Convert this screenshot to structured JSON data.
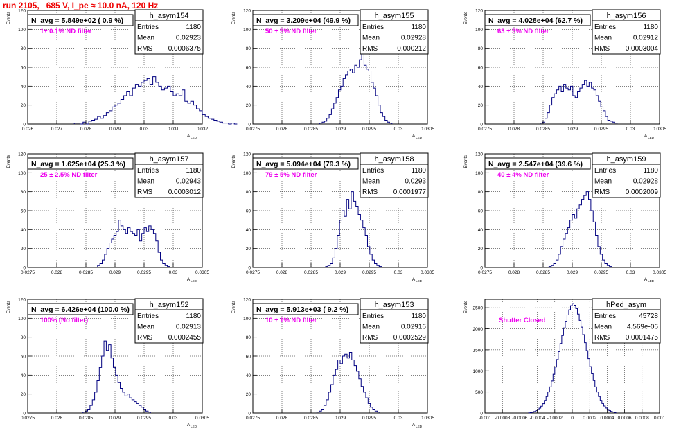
{
  "title": "run 2105,   685 V, I_pe ≈ 10.0 nA, 120 Hz",
  "colors": {
    "title": "#ee0000",
    "hist": "#000080",
    "annotation": "#ee00ee",
    "grid": "#000000"
  },
  "stats_labels": {
    "entries": "Entries",
    "mean": "Mean",
    "rms": "RMS"
  },
  "chart_data": [
    {
      "type": "histogram",
      "name": "h_asym154",
      "navg": "N_avg = 5.849e+02 ( 0.9 %)",
      "annotation": "1± 0.1% ND filter",
      "stats": {
        "entries": "1180",
        "mean": "0.02923",
        "rms": "0.0006375"
      },
      "ylabel": "Events",
      "xlabel": "A_LED",
      "grid": true,
      "xlim": [
        0.026,
        0.032
      ],
      "ylim": [
        0,
        120
      ],
      "xticks": [
        "0.026",
        "0.027",
        "0.028",
        "0.029",
        "0.03",
        "0.031",
        "0.032"
      ],
      "xtick_values": [
        0.026,
        0.027,
        0.028,
        0.029,
        0.03,
        0.031,
        0.032
      ],
      "yticks": [
        "0",
        "20",
        "40",
        "60",
        "80",
        "100",
        "120"
      ],
      "ytick_values": [
        0,
        20,
        40,
        60,
        80,
        100,
        120
      ],
      "bin_start": 0.0276,
      "bin_width": 0.0001,
      "values": [
        1,
        1,
        0,
        2,
        0,
        3,
        4,
        5,
        8,
        6,
        9,
        12,
        14,
        18,
        20,
        22,
        26,
        30,
        34,
        30,
        38,
        42,
        40,
        44,
        46,
        48,
        42,
        50,
        44,
        40,
        36,
        38,
        40,
        34,
        30,
        32,
        30,
        36,
        24,
        22,
        24,
        20,
        16,
        14,
        10,
        8,
        6,
        5,
        4,
        3,
        2,
        1,
        1,
        0,
        1,
        0
      ]
    },
    {
      "type": "histogram",
      "name": "h_asym155",
      "navg": "N_avg = 3.209e+04 (49.9 %)",
      "annotation": "50 ± 5% ND filter",
      "stats": {
        "entries": "1180",
        "mean": "0.02928",
        "rms": "0.000212"
      },
      "ylabel": "Events",
      "xlabel": "A_LED",
      "grid": true,
      "xlim": [
        0.0275,
        0.0305
      ],
      "ylim": [
        0,
        120
      ],
      "xticks": [
        "0.0275",
        "0.028",
        "0.0285",
        "0.029",
        "0.0295",
        "0.03",
        "0.0305"
      ],
      "xtick_values": [
        0.0275,
        0.028,
        0.0285,
        0.029,
        0.0295,
        0.03,
        0.0305
      ],
      "yticks": [
        "0",
        "20",
        "40",
        "60",
        "80",
        "100",
        "120"
      ],
      "ytick_values": [
        0,
        20,
        40,
        60,
        80,
        100,
        120
      ],
      "bin_start": 0.02865,
      "bin_width": 4e-05,
      "values": [
        1,
        2,
        3,
        6,
        10,
        16,
        22,
        28,
        36,
        40,
        48,
        52,
        56,
        58,
        54,
        62,
        60,
        68,
        75,
        62,
        58,
        56,
        44,
        38,
        30,
        20,
        12,
        8,
        4,
        2,
        1
      ]
    },
    {
      "type": "histogram",
      "name": "h_asym156",
      "navg": "N_avg = 4.028e+04 (62.7 %)",
      "annotation": "63 ± 5% ND filter",
      "stats": {
        "entries": "1180",
        "mean": "0.02912",
        "rms": "0.0003004"
      },
      "ylabel": "Events",
      "xlabel": "A_LED",
      "grid": true,
      "xlim": [
        0.0275,
        0.0305
      ],
      "ylim": [
        0,
        120
      ],
      "xticks": [
        "0.0275",
        "0.028",
        "0.0285",
        "0.029",
        "0.0295",
        "0.03",
        "0.0305"
      ],
      "xtick_values": [
        0.0275,
        0.028,
        0.0285,
        0.029,
        0.0295,
        0.03,
        0.0305
      ],
      "yticks": [
        "0",
        "20",
        "40",
        "60",
        "80",
        "100",
        "120"
      ],
      "ytick_values": [
        0,
        20,
        40,
        60,
        80,
        100,
        120
      ],
      "bin_start": 0.02845,
      "bin_width": 4e-05,
      "values": [
        1,
        2,
        6,
        12,
        20,
        28,
        32,
        36,
        40,
        34,
        42,
        38,
        36,
        40,
        30,
        28,
        34,
        38,
        42,
        46,
        40,
        44,
        38,
        36,
        30,
        24,
        18,
        14,
        8,
        4,
        3,
        2,
        1
      ]
    },
    {
      "type": "histogram",
      "name": "h_asym157",
      "navg": "N_avg = 1.625e+04 (25.3 %)",
      "annotation": "25 ± 2.5% ND filter",
      "stats": {
        "entries": "1180",
        "mean": "0.02943",
        "rms": "0.0003012"
      },
      "ylabel": "Events",
      "xlabel": "A_LED",
      "grid": true,
      "xlim": [
        0.0275,
        0.0305
      ],
      "ylim": [
        0,
        120
      ],
      "xticks": [
        "0.0275",
        "0.028",
        "0.0285",
        "0.029",
        "0.0295",
        "0.03",
        "0.0305"
      ],
      "xtick_values": [
        0.0275,
        0.028,
        0.0285,
        0.029,
        0.0295,
        0.03,
        0.0305
      ],
      "yticks": [
        "0",
        "20",
        "40",
        "60",
        "80",
        "100",
        "120"
      ],
      "ytick_values": [
        0,
        20,
        40,
        60,
        80,
        100,
        120
      ],
      "bin_start": 0.0287,
      "bin_width": 4e-05,
      "values": [
        2,
        4,
        8,
        14,
        20,
        26,
        30,
        34,
        38,
        50,
        44,
        40,
        36,
        42,
        38,
        36,
        34,
        40,
        28,
        36,
        42,
        38,
        44,
        40,
        36,
        28,
        16,
        8,
        4,
        2,
        1
      ]
    },
    {
      "type": "histogram",
      "name": "h_asym158",
      "navg": "N_avg = 5.094e+04 (79.3 %)",
      "annotation": "79 ± 5% ND filter",
      "stats": {
        "entries": "1180",
        "mean": "0.0293",
        "rms": "0.0001977"
      },
      "ylabel": "Events",
      "xlabel": "A_LED",
      "grid": true,
      "xlim": [
        0.0275,
        0.0305
      ],
      "ylim": [
        0,
        120
      ],
      "xticks": [
        "0.0275",
        "0.028",
        "0.0285",
        "0.029",
        "0.0295",
        "0.03",
        "0.0305"
      ],
      "xtick_values": [
        0.0275,
        0.028,
        0.0285,
        0.029,
        0.0295,
        0.03,
        0.0305
      ],
      "yticks": [
        "0",
        "20",
        "40",
        "60",
        "80",
        "100",
        "120"
      ],
      "ytick_values": [
        0,
        20,
        40,
        60,
        80,
        100,
        120
      ],
      "bin_start": 0.02875,
      "bin_width": 4e-05,
      "values": [
        1,
        2,
        4,
        10,
        20,
        34,
        50,
        60,
        54,
        72,
        62,
        80,
        70,
        64,
        56,
        50,
        42,
        34,
        22,
        14,
        8,
        4,
        2,
        1
      ]
    },
    {
      "type": "histogram",
      "name": "h_asym159",
      "navg": "N_avg = 2.547e+04 (39.6 %)",
      "annotation": "40 ± 4% ND filter",
      "stats": {
        "entries": "1180",
        "mean": "0.02928",
        "rms": "0.0002009"
      },
      "ylabel": "Events",
      "xlabel": "A_LED",
      "grid": true,
      "xlim": [
        0.0275,
        0.0305
      ],
      "ylim": [
        0,
        120
      ],
      "xticks": [
        "0.0275",
        "0.028",
        "0.0285",
        "0.029",
        "0.0295",
        "0.03",
        "0.0305"
      ],
      "xtick_values": [
        0.0275,
        0.028,
        0.0285,
        0.029,
        0.0295,
        0.03,
        0.0305
      ],
      "yticks": [
        "0",
        "20",
        "40",
        "60",
        "80",
        "100",
        "120"
      ],
      "ytick_values": [
        0,
        20,
        40,
        60,
        80,
        100,
        120
      ],
      "bin_start": 0.0286,
      "bin_width": 4e-05,
      "values": [
        1,
        2,
        4,
        8,
        14,
        22,
        30,
        36,
        42,
        50,
        56,
        52,
        62,
        66,
        72,
        76,
        80,
        72,
        60,
        48,
        34,
        22,
        14,
        8,
        4,
        2,
        1
      ]
    },
    {
      "type": "histogram",
      "name": "h_asym152",
      "navg": "N_avg = 6.426e+04 (100.0 %)",
      "annotation": "100% (No filter)",
      "stats": {
        "entries": "1180",
        "mean": "0.02913",
        "rms": "0.0002455"
      },
      "ylabel": "Events",
      "xlabel": "A_LED",
      "grid": true,
      "xlim": [
        0.0275,
        0.0305
      ],
      "ylim": [
        0,
        120
      ],
      "xticks": [
        "0.0275",
        "0.028",
        "0.0285",
        "0.029",
        "0.0295",
        "0.03",
        "0.0305"
      ],
      "xtick_values": [
        0.0275,
        0.028,
        0.0285,
        0.029,
        0.0295,
        0.03,
        0.0305
      ],
      "yticks": [
        "0",
        "20",
        "40",
        "60",
        "80",
        "100",
        "120"
      ],
      "ytick_values": [
        0,
        20,
        40,
        60,
        80,
        100,
        120
      ],
      "bin_start": 0.02845,
      "bin_width": 4e-05,
      "values": [
        1,
        2,
        4,
        8,
        14,
        22,
        34,
        48,
        60,
        76,
        66,
        72,
        58,
        48,
        40,
        32,
        26,
        22,
        18,
        20,
        16,
        14,
        12,
        10,
        8,
        6,
        4,
        2,
        1
      ]
    },
    {
      "type": "histogram",
      "name": "h_asym153",
      "navg": "N_avg = 5.913e+03 ( 9.2 %)",
      "annotation": "10 ± 1% ND filter",
      "stats": {
        "entries": "1180",
        "mean": "0.02916",
        "rms": "0.0002529"
      },
      "ylabel": "Events",
      "xlabel": "A_LED",
      "grid": true,
      "xlim": [
        0.0275,
        0.0305
      ],
      "ylim": [
        0,
        120
      ],
      "xticks": [
        "0.0275",
        "0.028",
        "0.0285",
        "0.029",
        "0.0295",
        "0.03",
        "0.0305"
      ],
      "xtick_values": [
        0.0275,
        0.028,
        0.0285,
        0.029,
        0.0295,
        0.03,
        0.0305
      ],
      "yticks": [
        "0",
        "20",
        "40",
        "60",
        "80",
        "100",
        "120"
      ],
      "ytick_values": [
        0,
        20,
        40,
        60,
        80,
        100,
        120
      ],
      "bin_start": 0.0286,
      "bin_width": 4e-05,
      "values": [
        1,
        2,
        4,
        8,
        14,
        22,
        30,
        40,
        46,
        56,
        52,
        60,
        62,
        58,
        64,
        56,
        50,
        44,
        36,
        28,
        22,
        16,
        10,
        6,
        4,
        2,
        1
      ]
    },
    {
      "type": "histogram",
      "name": "hPed_asym",
      "navg": "",
      "annotation": "Shutter Closed",
      "stats": {
        "entries": "45728",
        "mean": "4.569e-06",
        "rms": "0.0001475"
      },
      "ylabel": "Events",
      "xlabel": "",
      "grid": true,
      "xlim": [
        -0.001,
        0.001
      ],
      "ylim": [
        0,
        2700
      ],
      "xticks": [
        "-0.001",
        "-0.0008",
        "-0.0006",
        "-0.0004",
        "-0.0002",
        "0",
        "0.0002",
        "0.0004",
        "0.0006",
        "0.0008",
        "0.001"
      ],
      "xtick_values": [
        -0.001,
        -0.0008,
        -0.0006,
        -0.0004,
        -0.0002,
        0,
        0.0002,
        0.0004,
        0.0006,
        0.0008,
        0.001
      ],
      "yticks": [
        "0",
        "500",
        "1000",
        "1500",
        "2000",
        "2500"
      ],
      "ytick_values": [
        0,
        500,
        1000,
        1500,
        2000,
        2500
      ],
      "bin_start": -0.0005,
      "bin_width": 2e-05,
      "values": [
        5,
        10,
        20,
        35,
        55,
        80,
        115,
        160,
        220,
        300,
        390,
        500,
        620,
        760,
        920,
        1090,
        1270,
        1460,
        1650,
        1840,
        2020,
        2180,
        2330,
        2450,
        2550,
        2600,
        2560,
        2480,
        2350,
        2200,
        2040,
        1860,
        1670,
        1480,
        1290,
        1100,
        930,
        770,
        620,
        500,
        390,
        300,
        225,
        165,
        118,
        82,
        56,
        37,
        22,
        12
      ]
    }
  ]
}
